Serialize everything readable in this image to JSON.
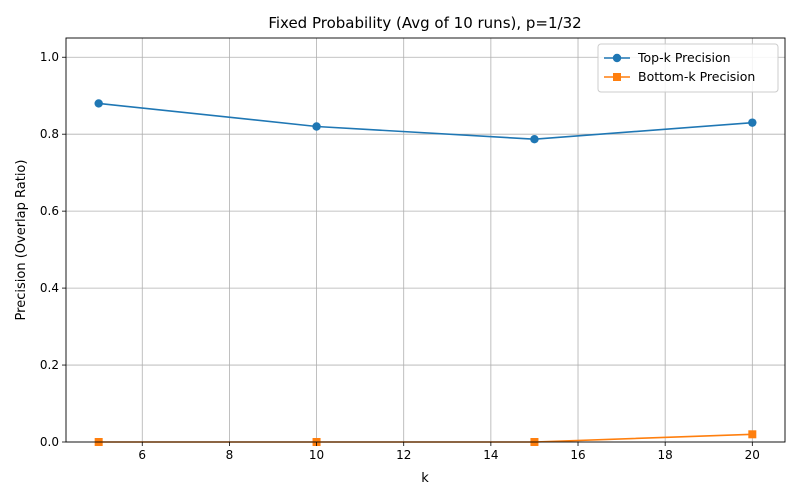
{
  "chart_data": {
    "type": "line",
    "title": "Fixed Probability (Avg of 10 runs), p=1/32",
    "xlabel": "k",
    "ylabel": "Precision (Overlap Ratio)",
    "x": [
      5,
      10,
      15,
      20
    ],
    "xlim": [
      4.25,
      20.75
    ],
    "ylim": [
      0,
      1.05
    ],
    "xticks": [
      6,
      8,
      10,
      12,
      14,
      16,
      18,
      20
    ],
    "yticks": [
      0.0,
      0.2,
      0.4,
      0.6,
      0.8,
      1.0
    ],
    "xtick_labels": [
      "6",
      "8",
      "10",
      "12",
      "14",
      "16",
      "18",
      "20"
    ],
    "ytick_labels": [
      "0.0",
      "0.2",
      "0.4",
      "0.6",
      "0.8",
      "1.0"
    ],
    "grid": true,
    "legend_position": "top-right",
    "series": [
      {
        "name": "Top-k Precision",
        "values": [
          0.88,
          0.82,
          0.787,
          0.83
        ],
        "color": "#1f77b4",
        "marker": "circle"
      },
      {
        "name": "Bottom-k Precision",
        "values": [
          0.0,
          0.0,
          0.0,
          0.02
        ],
        "color": "#ff7f0e",
        "marker": "square"
      }
    ]
  }
}
